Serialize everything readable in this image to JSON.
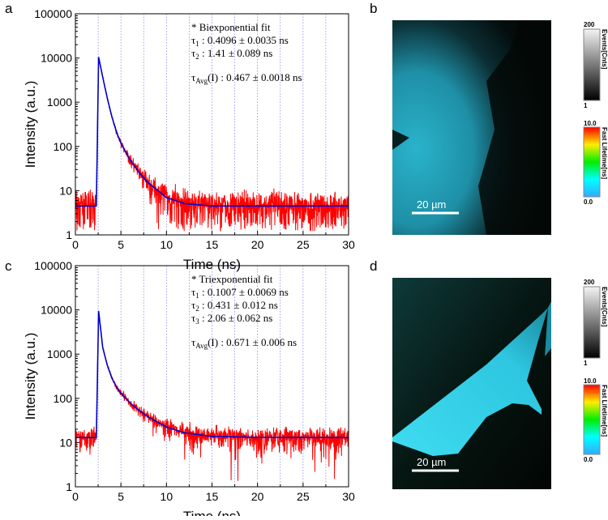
{
  "panel_labels": {
    "a": "a",
    "b": "b",
    "c": "c",
    "d": "d"
  },
  "chart_data": [
    {
      "type": "line",
      "panel": "a",
      "xlabel": "Time (ns)",
      "ylabel": "Intensity (a.u.)",
      "xlim": [
        0,
        30
      ],
      "ylim": [
        1,
        100000
      ],
      "yscale": "log",
      "xticks": [
        "0",
        "5",
        "10",
        "15",
        "20",
        "25",
        "30"
      ],
      "yticks": [
        "1",
        "10",
        "100",
        "1000",
        "10000",
        "100000"
      ],
      "grid": "vertical dotted lines every 2.5 ns",
      "series": [
        {
          "role": "data",
          "color": "#ff0000",
          "background": 4.5,
          "noise": "poisson"
        },
        {
          "role": "fit",
          "color": "#0000cc",
          "x": [
            0,
            2.3,
            2.55,
            3,
            3.5,
            4,
            4.5,
            5,
            6,
            7,
            8,
            10,
            12,
            15,
            30
          ],
          "y": [
            4.5,
            4.5,
            10500,
            3710,
            1245,
            474,
            216,
            118,
            50,
            25.5,
            15,
            7,
            5.1,
            4.5,
            4.5
          ]
        }
      ],
      "annotation": {
        "title": "* Biexponential fit",
        "lines": [
          {
            "sym": "τ",
            "sub": "1",
            "text": " : 0.4096 ± 0.0035 ns"
          },
          {
            "sym": "τ",
            "sub": "2",
            "text": " : 1.41 ± 0.089 ns"
          }
        ],
        "avg": {
          "sym": "τ",
          "sub": "Avg",
          "text": "(I) : 0.467 ± 0.0018 ns"
        }
      }
    },
    {
      "type": "line",
      "panel": "c",
      "xlabel": "Time (ns)",
      "ylabel": "Intensity (a.u.)",
      "xlim": [
        0,
        30
      ],
      "ylim": [
        1,
        100000
      ],
      "yscale": "log",
      "xticks": [
        "0",
        "5",
        "10",
        "15",
        "20",
        "25",
        "30"
      ],
      "yticks": [
        "1",
        "10",
        "100",
        "1000",
        "10000",
        "100000"
      ],
      "grid": "vertical dotted lines every 2.5 ns",
      "series": [
        {
          "role": "data",
          "color": "#ff0000",
          "background": 13,
          "noise": "poisson"
        },
        {
          "role": "fit",
          "color": "#0000cc",
          "x": [
            0,
            2.3,
            2.55,
            3,
            3.5,
            4,
            4.5,
            5,
            6,
            7,
            8,
            10,
            12,
            15,
            20,
            30
          ],
          "y": [
            13,
            13,
            9500,
            1415,
            564,
            288,
            181,
            129,
            79,
            53,
            38,
            22.5,
            16.6,
            13.8,
            13.1,
            13
          ]
        }
      ],
      "annotation": {
        "title": "* Triexponential fit",
        "lines": [
          {
            "sym": "τ",
            "sub": "1",
            "text": " : 0.1007 ± 0.0069 ns"
          },
          {
            "sym": "τ",
            "sub": "2",
            "text": " : 0.431 ± 0.012 ns"
          },
          {
            "sym": "τ",
            "sub": "3",
            "text": " : 2.06 ± 0.062 ns"
          }
        ],
        "avg": {
          "sym": "τ",
          "sub": "Avg",
          "text": "(I) : 0.671 ± 0.006 ns"
        }
      }
    }
  ],
  "images": {
    "b": {
      "scale_bar": "20 µm"
    },
    "d": {
      "scale_bar": "20 µm"
    }
  },
  "colorbars": {
    "events": {
      "label": "Events[Cnts]",
      "max": "200",
      "min": "1"
    },
    "lifetime": {
      "label": "Fast Lifetime[ns]",
      "max": "10.0",
      "min": "0.0",
      "colors": [
        "#ff0000",
        "#ffff00",
        "#00ff00",
        "#00ffff",
        "#33aaff"
      ]
    }
  }
}
